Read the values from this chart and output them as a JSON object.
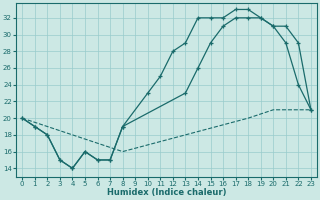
{
  "xlabel": "Humidex (Indice chaleur)",
  "bg_color": "#cce8e4",
  "grid_color": "#99cccc",
  "line_color": "#1a6b6b",
  "xlim": [
    -0.5,
    23.5
  ],
  "ylim": [
    13.0,
    33.8
  ],
  "yticks": [
    14,
    16,
    18,
    20,
    22,
    24,
    26,
    28,
    30,
    32
  ],
  "xticks": [
    0,
    1,
    2,
    3,
    4,
    5,
    6,
    7,
    8,
    9,
    10,
    11,
    12,
    13,
    14,
    15,
    16,
    17,
    18,
    19,
    20,
    21,
    22,
    23
  ],
  "line1_x": [
    0,
    1,
    2,
    3,
    4,
    5,
    6,
    7,
    8,
    10,
    11,
    12,
    13,
    14,
    15,
    16,
    17,
    18,
    19,
    20,
    21,
    22,
    23
  ],
  "line1_y": [
    20,
    19,
    18,
    15,
    14,
    16,
    15,
    15,
    19,
    23,
    25,
    28,
    29,
    32,
    32,
    32,
    33,
    33,
    32,
    31,
    29,
    24,
    21
  ],
  "line2_x": [
    0,
    1,
    2,
    3,
    4,
    5,
    6,
    7,
    8,
    13,
    14,
    15,
    16,
    17,
    18,
    19,
    20,
    21,
    22,
    23
  ],
  "line2_y": [
    20,
    19,
    18,
    15,
    14,
    16,
    15,
    15,
    19,
    23,
    26,
    29,
    31,
    32,
    32,
    32,
    31,
    31,
    29,
    21
  ],
  "dash_x": [
    0,
    8,
    13,
    18,
    20,
    21,
    22,
    23
  ],
  "dash_y": [
    20,
    16,
    18,
    20,
    21,
    21,
    21,
    21
  ]
}
